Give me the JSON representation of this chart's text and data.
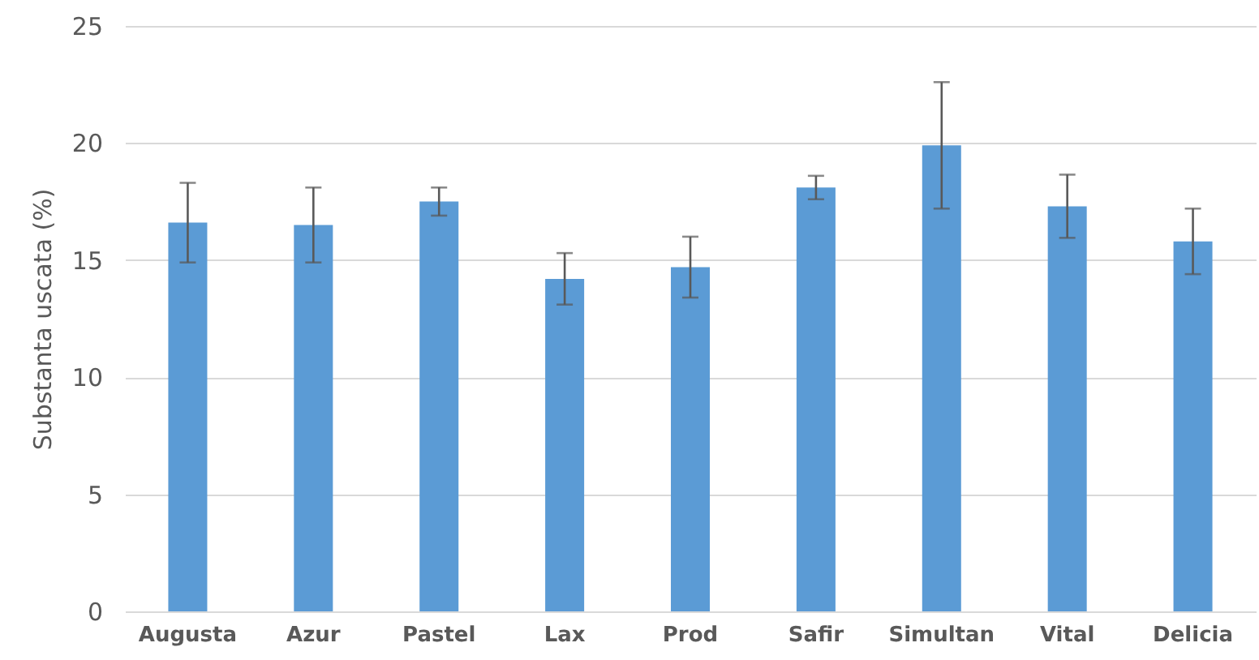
{
  "chart_data": {
    "type": "bar",
    "ylabel": "Substanta uscata (%)",
    "categories": [
      "Augusta",
      "Azur",
      "Pastel",
      "Lax",
      "Prod",
      "Safir",
      "Simultan",
      "Vital",
      "Delicia"
    ],
    "values": [
      16.6,
      16.5,
      17.5,
      14.2,
      14.7,
      18.1,
      19.9,
      17.3,
      15.8
    ],
    "errors": [
      1.7,
      1.6,
      0.6,
      1.1,
      1.3,
      0.5,
      2.7,
      1.35,
      1.4
    ],
    "color": "#5b9bd5",
    "ylim": [
      0,
      25
    ],
    "yticks": [
      0,
      5,
      10,
      15,
      20,
      25
    ],
    "grid": "y"
  }
}
